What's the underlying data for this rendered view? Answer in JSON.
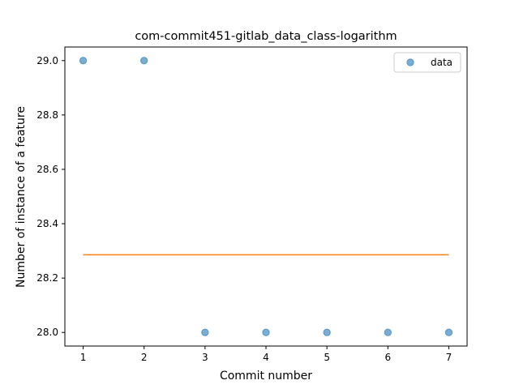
{
  "chart_data": {
    "type": "scatter",
    "title": "com-commit451-gitlab_data_class-logarithm",
    "xlabel": "Commit number",
    "ylabel": "Number of instance of a feature",
    "xlim": [
      0.7,
      7.3
    ],
    "ylim": [
      27.95,
      29.05
    ],
    "xticks": [
      1,
      2,
      3,
      4,
      5,
      6,
      7
    ],
    "xtick_labels": [
      "1",
      "2",
      "3",
      "4",
      "5",
      "6",
      "7"
    ],
    "yticks": [
      28.0,
      28.2,
      28.4,
      28.6,
      28.8,
      29.0
    ],
    "ytick_labels": [
      "28.0",
      "28.2",
      "28.4",
      "28.6",
      "28.8",
      "29.0"
    ],
    "grid": false,
    "legend_position": "top-right",
    "series": [
      {
        "name": "data",
        "kind": "scatter",
        "color": "#1f77b4",
        "x": [
          1,
          2,
          3,
          4,
          5,
          6,
          7
        ],
        "y": [
          29,
          29,
          28,
          28,
          28,
          28,
          28
        ]
      },
      {
        "kind": "line",
        "color": "#ff7f0e",
        "x": [
          1,
          7
        ],
        "y": [
          28.2857,
          28.2857
        ]
      }
    ]
  }
}
